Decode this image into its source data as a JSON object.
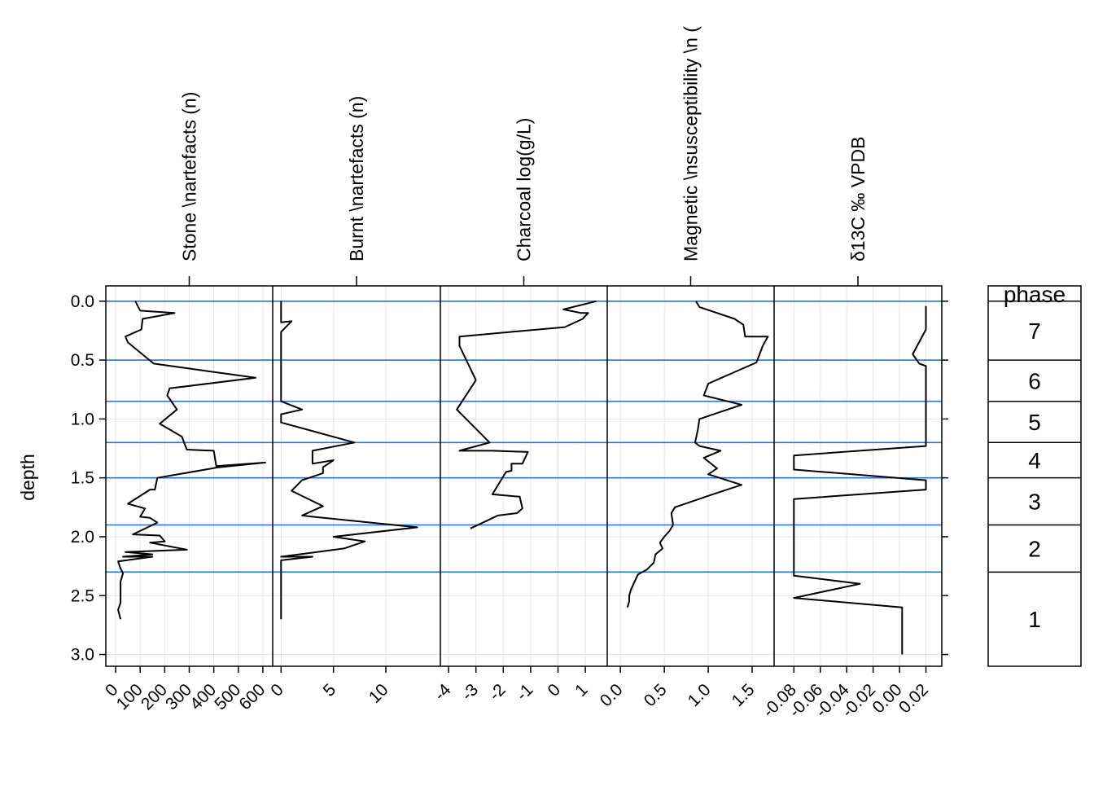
{
  "chart_data": {
    "type": "line",
    "y_label": "depth",
    "ylim": [
      3.1,
      -0.13
    ],
    "y_ticks": [
      0.0,
      0.5,
      1.0,
      1.5,
      2.0,
      2.5,
      3.0
    ],
    "y_tick_labels": [
      "0.0",
      "0.5",
      "1.0",
      "1.5",
      "2.0",
      "2.5",
      "3.0"
    ],
    "grid": true,
    "zone_boundaries": [
      0.0,
      0.5,
      0.85,
      1.2,
      1.5,
      1.9,
      2.3
    ],
    "boundary_color": "#1f78d8",
    "line_color": "#000000",
    "panels": [
      {
        "title": "Stone \\nartefacts (n)",
        "xlim": [
          -40,
          640
        ],
        "x_ticks": [
          0,
          100,
          200,
          300,
          400,
          500,
          600
        ],
        "x_tick_labels": [
          "0",
          "100",
          "200",
          "300",
          "400",
          "500",
          "600"
        ],
        "points": [
          [
            80,
            0.0
          ],
          [
            100,
            0.08
          ],
          [
            240,
            0.1
          ],
          [
            110,
            0.15
          ],
          [
            105,
            0.24
          ],
          [
            40,
            0.3
          ],
          [
            50,
            0.35
          ],
          [
            155,
            0.53
          ],
          [
            570,
            0.65
          ],
          [
            220,
            0.74
          ],
          [
            210,
            0.8
          ],
          [
            230,
            0.86
          ],
          [
            250,
            0.92
          ],
          [
            180,
            1.04
          ],
          [
            270,
            1.15
          ],
          [
            290,
            1.26
          ],
          [
            400,
            1.27
          ],
          [
            410,
            1.4
          ],
          [
            610,
            1.37
          ],
          [
            420,
            1.41
          ],
          [
            170,
            1.5
          ],
          [
            160,
            1.6
          ],
          [
            140,
            1.6
          ],
          [
            50,
            1.72
          ],
          [
            120,
            1.76
          ],
          [
            100,
            1.83
          ],
          [
            140,
            1.84
          ],
          [
            170,
            1.88
          ],
          [
            70,
            1.98
          ],
          [
            180,
            1.99
          ],
          [
            200,
            2.04
          ],
          [
            140,
            2.05
          ],
          [
            290,
            2.11
          ],
          [
            40,
            2.13
          ],
          [
            150,
            2.15
          ],
          [
            30,
            2.17
          ],
          [
            150,
            2.17
          ],
          [
            10,
            2.21
          ],
          [
            20,
            2.27
          ],
          [
            30,
            2.31
          ],
          [
            20,
            2.38
          ],
          [
            20,
            2.47
          ],
          [
            20,
            2.56
          ],
          [
            10,
            2.62
          ],
          [
            20,
            2.7
          ]
        ]
      },
      {
        "title": "Burnt \\nartefacts (n)",
        "xlim": [
          -0.8,
          15.2
        ],
        "x_ticks": [
          0,
          5,
          10
        ],
        "x_tick_labels": [
          "0",
          "5",
          "10"
        ],
        "points": [
          [
            0,
            0.0
          ],
          [
            0,
            0.18
          ],
          [
            1,
            0.17
          ],
          [
            0,
            0.26
          ],
          [
            0,
            0.85
          ],
          [
            2,
            0.92
          ],
          [
            0,
            0.96
          ],
          [
            0,
            1.03
          ],
          [
            7,
            1.2
          ],
          [
            3,
            1.27
          ],
          [
            3,
            1.38
          ],
          [
            5,
            1.35
          ],
          [
            4,
            1.41
          ],
          [
            4,
            1.46
          ],
          [
            2,
            1.52
          ],
          [
            1,
            1.61
          ],
          [
            4,
            1.74
          ],
          [
            2,
            1.82
          ],
          [
            3,
            1.83
          ],
          [
            13,
            1.92
          ],
          [
            5,
            2.0
          ],
          [
            8,
            2.04
          ],
          [
            6,
            2.1
          ],
          [
            0,
            2.17
          ],
          [
            3,
            2.17
          ],
          [
            0,
            2.2
          ],
          [
            0,
            2.7
          ]
        ]
      },
      {
        "title": "Charcoal log(g/L)",
        "xlim": [
          -4.3,
          1.8
        ],
        "x_ticks": [
          -4,
          -3,
          -2,
          -1,
          0,
          1
        ],
        "x_tick_labels": [
          "-4",
          "-3",
          "-2",
          "-1",
          "0",
          "1"
        ],
        "points": [
          [
            1.4,
            0.0
          ],
          [
            0.2,
            0.07
          ],
          [
            0.85,
            0.1
          ],
          [
            1.1,
            0.1
          ],
          [
            0.9,
            0.15
          ],
          [
            0.25,
            0.22
          ],
          [
            -3.6,
            0.3
          ],
          [
            -3.6,
            0.38
          ],
          [
            -3.0,
            0.67
          ],
          [
            -3.7,
            0.92
          ],
          [
            -2.5,
            1.2
          ],
          [
            -3.6,
            1.27
          ],
          [
            -2.4,
            1.27
          ],
          [
            -1.1,
            1.28
          ],
          [
            -1.3,
            1.38
          ],
          [
            -1.7,
            1.38
          ],
          [
            -1.7,
            1.44
          ],
          [
            -1.9,
            1.45
          ],
          [
            -2.4,
            1.64
          ],
          [
            -1.4,
            1.66
          ],
          [
            -1.3,
            1.76
          ],
          [
            -1.5,
            1.8
          ],
          [
            -2.2,
            1.82
          ],
          [
            -3.2,
            1.93
          ]
        ]
      },
      {
        "title": "Magnetic \\nsusceptibility \\n (",
        "xlim": [
          -0.15,
          1.75
        ],
        "x_ticks": [
          0.0,
          0.5,
          1.0,
          1.5
        ],
        "x_tick_labels": [
          "0.0",
          "0.5",
          "1.0",
          "1.5"
        ],
        "points": [
          [
            0.86,
            0.0
          ],
          [
            0.9,
            0.05
          ],
          [
            1.3,
            0.15
          ],
          [
            1.4,
            0.2
          ],
          [
            1.42,
            0.3
          ],
          [
            1.68,
            0.3
          ],
          [
            1.62,
            0.38
          ],
          [
            1.55,
            0.52
          ],
          [
            1.0,
            0.7
          ],
          [
            0.95,
            0.8
          ],
          [
            1.38,
            0.88
          ],
          [
            0.9,
            1.0
          ],
          [
            0.88,
            1.1
          ],
          [
            0.85,
            1.2
          ],
          [
            0.9,
            1.23
          ],
          [
            1.14,
            1.27
          ],
          [
            0.95,
            1.33
          ],
          [
            1.1,
            1.42
          ],
          [
            1.0,
            1.47
          ],
          [
            1.38,
            1.56
          ],
          [
            1.05,
            1.64
          ],
          [
            0.62,
            1.75
          ],
          [
            0.58,
            1.8
          ],
          [
            0.6,
            1.9
          ],
          [
            0.56,
            1.95
          ],
          [
            0.5,
            2.0
          ],
          [
            0.45,
            2.05
          ],
          [
            0.48,
            2.1
          ],
          [
            0.4,
            2.15
          ],
          [
            0.38,
            2.22
          ],
          [
            0.3,
            2.28
          ],
          [
            0.2,
            2.32
          ],
          [
            0.15,
            2.4
          ],
          [
            0.12,
            2.45
          ],
          [
            0.1,
            2.5
          ],
          [
            0.1,
            2.55
          ],
          [
            0.08,
            2.6
          ]
        ]
      },
      {
        "title": "δ13C ‰ VPDB",
        "xlim": [
          -0.095,
          0.032
        ],
        "x_ticks": [
          -0.08,
          -0.06,
          -0.04,
          -0.02,
          0.0,
          0.02
        ],
        "x_tick_labels": [
          "-0.08",
          "-0.06",
          "-0.04",
          "-0.02",
          "0.00",
          "0.02"
        ],
        "points": [
          [
            0.02,
            0.04
          ],
          [
            0.02,
            0.24
          ],
          [
            0.01,
            0.45
          ],
          [
            0.015,
            0.53
          ],
          [
            0.02,
            0.55
          ],
          [
            0.02,
            1.23
          ],
          [
            -0.08,
            1.31
          ],
          [
            -0.08,
            1.43
          ],
          [
            0.02,
            1.52
          ],
          [
            0.02,
            1.6
          ],
          [
            -0.08,
            1.68
          ],
          [
            -0.08,
            2.33
          ],
          [
            -0.03,
            2.4
          ],
          [
            -0.08,
            2.52
          ],
          [
            0.002,
            2.6
          ],
          [
            0.002,
            3.0
          ]
        ]
      }
    ],
    "phase_panel": {
      "title": "phase",
      "zones": [
        {
          "label": "7",
          "top": 0.0,
          "bottom": 0.5
        },
        {
          "label": "6",
          "top": 0.5,
          "bottom": 0.85
        },
        {
          "label": "5",
          "top": 0.85,
          "bottom": 1.2
        },
        {
          "label": "4",
          "top": 1.2,
          "bottom": 1.5
        },
        {
          "label": "3",
          "top": 1.5,
          "bottom": 1.9
        },
        {
          "label": "2",
          "top": 1.9,
          "bottom": 2.3
        },
        {
          "label": "1",
          "top": 2.3,
          "bottom": 3.1
        }
      ]
    }
  }
}
